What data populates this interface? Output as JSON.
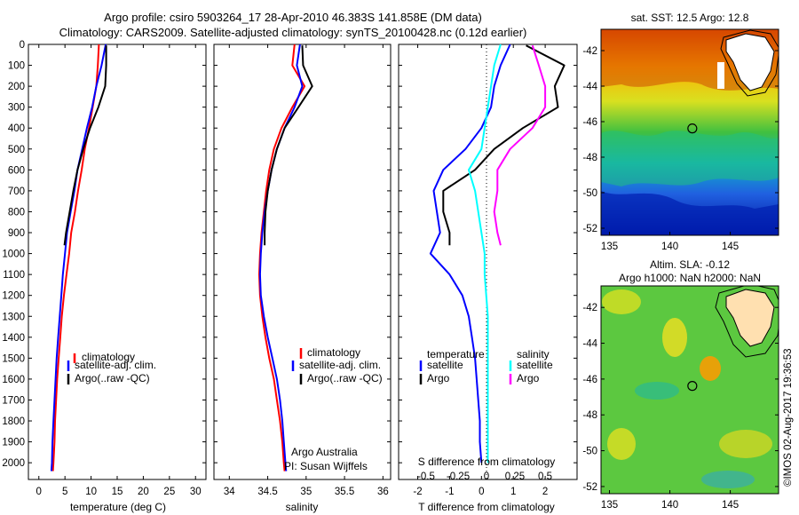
{
  "header": {
    "title_line1": "Argo profile: csiro 5903264_17 28-Apr-2010 46.383S 141.858E (DM data)",
    "title_line2": "Climatology: CARS2009. Satellite-adjusted climatology: synTS_20100428.nc (0.12d earlier)"
  },
  "colors": {
    "climatology": "#ff0000",
    "satellite": "#0000ff",
    "argo": "#000000",
    "argo_salinity_diff": "#ff00ff",
    "satellite_salinity_diff": "#00ffff"
  },
  "chart_data": [
    {
      "type": "line",
      "xlabel": "temperature (deg C)",
      "xticks": [
        0,
        5,
        10,
        15,
        20,
        25,
        30
      ],
      "xlim": [
        -2,
        32
      ],
      "ylim": [
        2080,
        0
      ],
      "yticks": [
        0,
        100,
        200,
        300,
        400,
        500,
        600,
        700,
        800,
        900,
        1000,
        1100,
        1200,
        1300,
        1400,
        1500,
        1600,
        1700,
        1800,
        1900,
        2000
      ],
      "legend": [
        "climatology",
        "satellite-adj. clim.",
        "Argo(..raw -QC)"
      ],
      "series": [
        {
          "name": "climatology",
          "color": "#ff0000",
          "x": [
            11.5,
            11.3,
            11.0,
            10.3,
            9.6,
            8.8,
            8.2,
            7.5,
            6.9,
            6.2,
            5.8,
            5.3,
            4.8,
            4.4,
            4.1,
            3.8,
            3.5,
            3.3,
            3.1,
            3.0,
            2.8,
            2.7
          ],
          "y": [
            0,
            100,
            200,
            300,
            400,
            500,
            600,
            700,
            800,
            900,
            1000,
            1100,
            1200,
            1300,
            1400,
            1500,
            1600,
            1700,
            1800,
            1900,
            2000,
            2040
          ]
        },
        {
          "name": "satellite-adj. clim.",
          "color": "#0000ff",
          "x": [
            12.8,
            12.0,
            11.0,
            10.2,
            9.2,
            8.3,
            7.4,
            6.8,
            6.1,
            5.4,
            5.0,
            4.6,
            4.3,
            4.0,
            3.7,
            3.4,
            3.2,
            3.0,
            2.8,
            2.6,
            2.5,
            2.4
          ],
          "y": [
            0,
            100,
            200,
            300,
            400,
            500,
            600,
            700,
            800,
            900,
            1000,
            1100,
            1200,
            1300,
            1400,
            1500,
            1600,
            1700,
            1800,
            1900,
            2000,
            2040
          ]
        },
        {
          "name": "Argo(..raw -QC)",
          "color": "#000000",
          "x": [
            12.9,
            12.9,
            12.7,
            11.4,
            9.8,
            8.5,
            7.4,
            6.6,
            5.9,
            5.2,
            4.9
          ],
          "y": [
            5,
            100,
            200,
            300,
            400,
            500,
            600,
            700,
            800,
            900,
            960
          ]
        }
      ]
    },
    {
      "type": "line",
      "xlabel": "salinity",
      "xticks": [
        34,
        34.5,
        35,
        35.5,
        36
      ],
      "xlim": [
        33.8,
        36.1
      ],
      "ylim": [
        2080,
        0
      ],
      "legend": [
        "climatology",
        "satellite-adj. clim.",
        "Argo(..raw -QC)"
      ],
      "annotation": [
        "Argo Australia",
        "PI: Susan Wijffels"
      ],
      "series": [
        {
          "name": "climatology",
          "color": "#ff0000",
          "x": [
            34.85,
            34.82,
            34.98,
            34.82,
            34.68,
            34.58,
            34.52,
            34.48,
            34.45,
            34.42,
            34.4,
            34.39,
            34.4,
            34.43,
            34.47,
            34.52,
            34.58,
            34.62,
            34.66,
            34.69,
            34.71,
            34.72
          ],
          "y": [
            0,
            100,
            200,
            300,
            400,
            500,
            600,
            700,
            800,
            900,
            1000,
            1100,
            1200,
            1300,
            1400,
            1500,
            1600,
            1700,
            1800,
            1900,
            2000,
            2040
          ]
        },
        {
          "name": "satellite-adj. clim.",
          "color": "#0000ff",
          "x": [
            34.92,
            34.88,
            34.95,
            34.85,
            34.72,
            34.62,
            34.55,
            34.5,
            34.46,
            34.43,
            34.41,
            34.4,
            34.41,
            34.45,
            34.5,
            34.56,
            34.62,
            34.66,
            34.69,
            34.71,
            34.73,
            34.74
          ],
          "y": [
            0,
            100,
            200,
            300,
            400,
            500,
            600,
            700,
            800,
            900,
            1000,
            1100,
            1200,
            1300,
            1400,
            1500,
            1600,
            1700,
            1800,
            1900,
            2000,
            2040
          ]
        },
        {
          "name": "Argo(..raw -QC)",
          "color": "#000000",
          "x": [
            34.95,
            34.96,
            35.08,
            34.9,
            34.72,
            34.62,
            34.55,
            34.5,
            34.47,
            34.46,
            34.46
          ],
          "y": [
            5,
            100,
            200,
            300,
            400,
            500,
            600,
            700,
            800,
            900,
            960
          ]
        }
      ]
    },
    {
      "type": "line",
      "xlabel": "T difference from climatology",
      "xticks": [
        -2,
        -1,
        0,
        1,
        2
      ],
      "xlim": [
        -2.6,
        3.0
      ],
      "top_axis_label": "S difference from climatology",
      "top_axis_ticks": [
        "-0.5",
        "-0.25",
        "0",
        "0.25",
        "0.5"
      ],
      "ylim": [
        2080,
        0
      ],
      "legend_left_title": "temperature",
      "legend_right_title": "salinity",
      "legend": [
        "satellite",
        "Argo",
        "satellite",
        "Argo"
      ],
      "series": [
        {
          "name": "satellite",
          "color": "#0000ff",
          "x": [
            0.9,
            0.6,
            0.4,
            0.3,
            0.0,
            -0.5,
            -1.2,
            -1.5,
            -1.4,
            -1.3,
            -1.6,
            -1.0,
            -0.6,
            -0.4,
            -0.3,
            -0.2,
            -0.15,
            -0.1,
            -0.05,
            -0.05,
            0.0
          ],
          "y": [
            0,
            100,
            200,
            300,
            400,
            500,
            600,
            700,
            800,
            900,
            1000,
            1100,
            1200,
            1300,
            1400,
            1500,
            1600,
            1700,
            1800,
            1900,
            2000
          ]
        },
        {
          "name": "Argo",
          "color": "#000000",
          "x": [
            1.4,
            2.6,
            2.3,
            2.4,
            1.3,
            0.4,
            -0.2,
            -1.2,
            -1.2,
            -1.0,
            -1.0
          ],
          "y": [
            5,
            100,
            200,
            300,
            400,
            500,
            600,
            700,
            800,
            900,
            960
          ]
        },
        {
          "name": "satellite",
          "color": "#00ffff",
          "x": [
            0.6,
            0.4,
            0.3,
            0.2,
            0.1,
            0.0,
            -0.4,
            -0.2,
            -0.1,
            0.0,
            0.1,
            0.1,
            0.15,
            0.2,
            0.2,
            0.2,
            0.2,
            0.2,
            0.2,
            0.2,
            0.2
          ],
          "y": [
            0,
            100,
            200,
            300,
            400,
            500,
            600,
            700,
            800,
            900,
            1000,
            1100,
            1200,
            1300,
            1400,
            1500,
            1600,
            1700,
            1800,
            1900,
            2000
          ]
        },
        {
          "name": "Argo",
          "color": "#ff00ff",
          "x": [
            1.6,
            1.8,
            2.0,
            2.0,
            1.6,
            0.9,
            0.5,
            0.5,
            0.4,
            0.5,
            0.6
          ],
          "y": [
            5,
            100,
            200,
            300,
            400,
            500,
            600,
            700,
            800,
            900,
            960
          ]
        }
      ]
    }
  ],
  "maps": {
    "sst": {
      "title": "sat. SST: 12.5 Argo: 12.8",
      "yticks": [
        "-42",
        "-44",
        "-46",
        "-48",
        "-50",
        "-52"
      ],
      "xticks": [
        "135",
        "140",
        "145"
      ]
    },
    "sla": {
      "title_line1": "Altim. SLA: -0.12",
      "title_line2": "Argo h1000: NaN h2000: NaN",
      "yticks": [
        "-42",
        "-44",
        "-46",
        "-48",
        "-50",
        "-52"
      ],
      "xticks": [
        "135",
        "140",
        "145"
      ]
    },
    "float_position": {
      "lon": 141.858,
      "lat": -46.383
    },
    "credit": "©IMOS 02-Aug-2017 19:36:53"
  }
}
